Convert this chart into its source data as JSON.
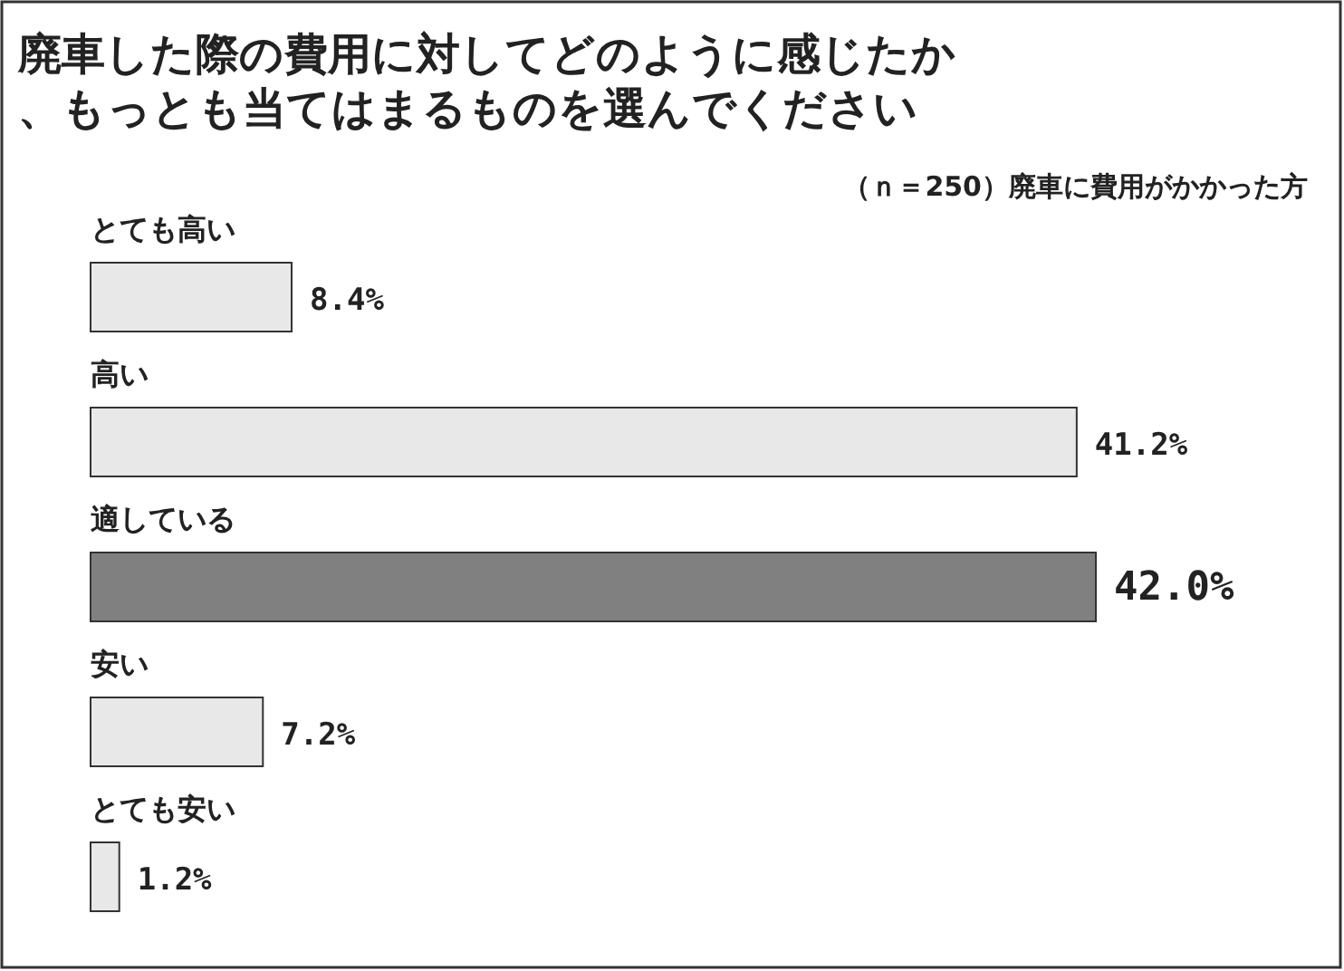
{
  "chart_data": {
    "type": "bar",
    "orientation": "horizontal",
    "title": "廃車した際の費用に対してどのように感じたか、もっとも当てはまるものを選んでください",
    "subtitle": "（ｎ＝250）廃車に費用がかかった方",
    "categories": [
      "とても高い",
      "高い",
      "適している",
      "安い",
      "とても安い"
    ],
    "values": [
      8.4,
      41.2,
      42.0,
      7.2,
      1.2
    ],
    "colors": [
      "#e8e8e8",
      "#e8e8e8",
      "#808080",
      "#e8e8e8",
      "#e8e8e8"
    ],
    "value_labels": [
      "8.4%",
      "41.2%",
      "42.0%",
      "7.2%",
      "1.2%"
    ]
  }
}
